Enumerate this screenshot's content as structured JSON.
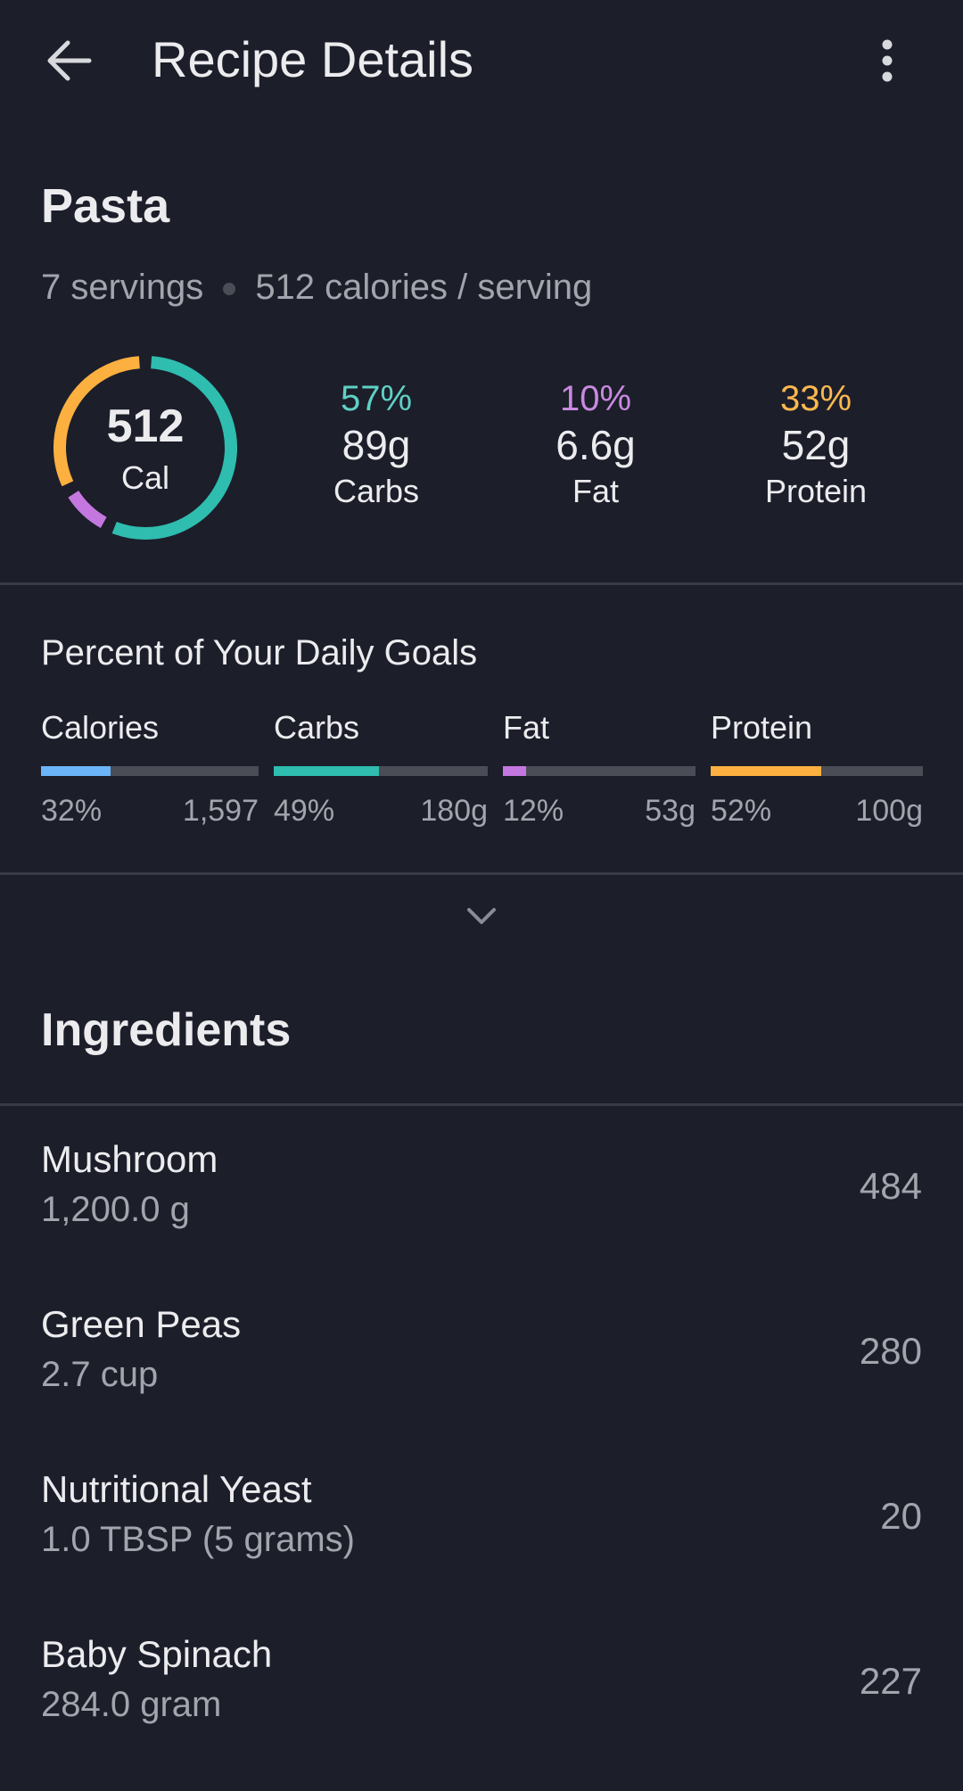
{
  "header": {
    "title": "Recipe Details",
    "back_icon": "arrow-left-icon",
    "menu_icon": "more-vertical-icon"
  },
  "recipe": {
    "name": "Pasta",
    "servings": "7 servings",
    "calories_per_serving": "512 calories / serving"
  },
  "summary": {
    "calories": "512",
    "calories_label": "Cal",
    "macros": [
      {
        "percent": "57%",
        "amount": "89g",
        "label": "Carbs",
        "color": "#2ebdaf",
        "share": 57
      },
      {
        "percent": "10%",
        "amount": "6.6g",
        "label": "Fat",
        "color": "#c577e0",
        "share": 10
      },
      {
        "percent": "33%",
        "amount": "52g",
        "label": "Protein",
        "color": "#fbb040",
        "share": 33
      }
    ]
  },
  "daily_goals": {
    "title": "Percent of Your Daily Goals",
    "items": [
      {
        "label": "Calories",
        "percent": "32%",
        "goal": "1,597",
        "fill": 32,
        "color": "#6cb4f8"
      },
      {
        "label": "Carbs",
        "percent": "49%",
        "goal": "180g",
        "fill": 49,
        "color": "#2ebdaf"
      },
      {
        "label": "Fat",
        "percent": "12%",
        "goal": "53g",
        "fill": 12,
        "color": "#c577e0"
      },
      {
        "label": "Protein",
        "percent": "52%",
        "goal": "100g",
        "fill": 52,
        "color": "#fbb040"
      }
    ],
    "expand_icon": "chevron-down-icon"
  },
  "ingredients": {
    "title": "Ingredients",
    "items": [
      {
        "name": "Mushroom",
        "amount": "1,200.0 g",
        "calories": "484"
      },
      {
        "name": "Green Peas",
        "amount": "2.7 cup",
        "calories": "280"
      },
      {
        "name": "Nutritional Yeast",
        "amount": "1.0 TBSP (5 grams)",
        "calories": "20"
      },
      {
        "name": "Baby Spinach",
        "amount": "284.0 gram",
        "calories": "227"
      }
    ]
  }
}
